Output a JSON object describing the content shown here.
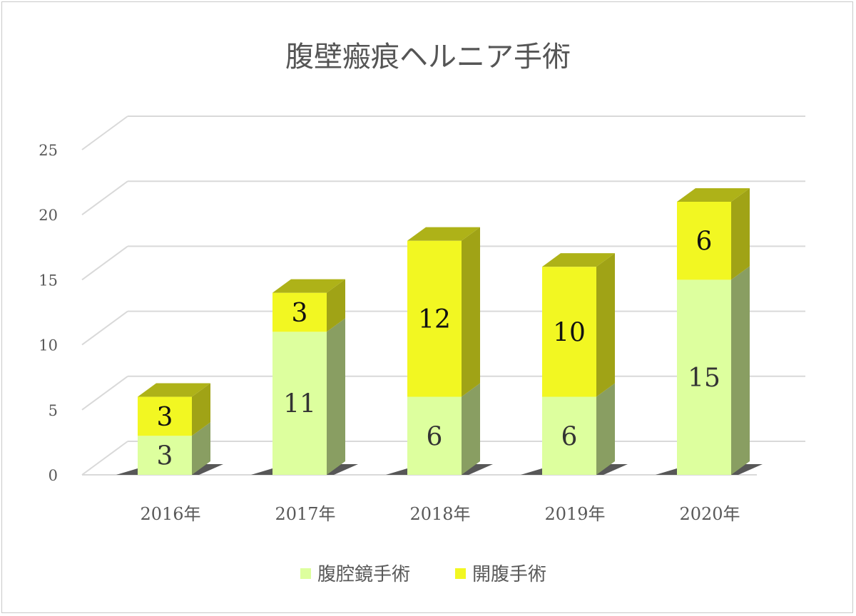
{
  "chart_data": {
    "type": "bar",
    "stacked": true,
    "three_d": true,
    "title": "腹壁瘢痕ヘルニア手術",
    "categories": [
      "2016年",
      "2017年",
      "2018年",
      "2019年",
      "2020年"
    ],
    "series": [
      {
        "name": "腹腔鏡手術",
        "values": [
          3,
          11,
          6,
          6,
          15
        ],
        "color": "#ddff9e",
        "label_color": "#333333"
      },
      {
        "name": "開腹手術",
        "values": [
          3,
          3,
          12,
          10,
          6
        ],
        "color": "#f2f722",
        "label_color": "#111111"
      }
    ],
    "ylim": [
      0,
      25
    ],
    "yticks": [
      0,
      5,
      10,
      15,
      20,
      25
    ],
    "grid": true,
    "legend_position": "bottom"
  }
}
